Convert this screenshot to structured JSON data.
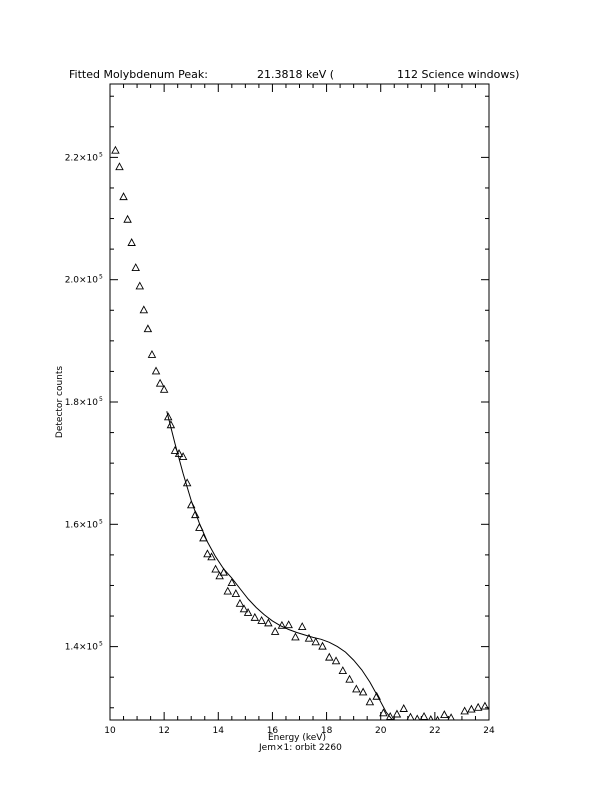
{
  "chart_data": {
    "type": "scatter",
    "title": "Fitted Molybdenum Peak:",
    "title_value": "21.3818 keV (",
    "title_windows": "112 Science windows)",
    "xlabel": "Energy (keV)",
    "ylabel": "Detector counts",
    "caption": "Jem×1: orbit 2260",
    "xlim": [
      10,
      24
    ],
    "ylim": [
      128000,
      232000
    ],
    "x_ticks": [
      10,
      12,
      14,
      16,
      18,
      20,
      22,
      24
    ],
    "x_tick_labels": [
      "10",
      "12",
      "14",
      "16",
      "18",
      "20",
      "22",
      "24"
    ],
    "y_ticks": [
      140000,
      160000,
      180000,
      200000,
      220000
    ],
    "y_tick_labels": [
      {
        "mantissa": "1.4×10",
        "exp": "5"
      },
      {
        "mantissa": "1.6×10",
        "exp": "5"
      },
      {
        "mantissa": "1.8×10",
        "exp": "5"
      },
      {
        "mantissa": "2.0×10",
        "exp": "5"
      },
      {
        "mantissa": "2.2×10",
        "exp": "5"
      }
    ],
    "grid": false,
    "series": [
      {
        "marker": "triangle-open",
        "x": [
          10.2,
          10.35,
          10.5,
          10.65,
          10.8,
          10.95,
          11.1,
          11.25,
          11.4,
          11.55,
          11.7,
          11.85,
          12.0,
          12.15,
          12.25,
          12.4,
          12.55,
          12.7,
          12.85,
          13.0,
          13.15,
          13.3,
          13.45,
          13.6,
          13.75,
          13.9,
          14.05,
          14.2,
          14.35,
          14.5,
          14.65,
          14.8,
          14.95,
          15.1,
          15.35,
          15.6,
          15.85,
          16.1,
          16.35,
          16.6,
          16.85,
          17.1,
          17.35,
          17.6,
          17.85,
          18.1,
          18.35,
          18.6,
          18.85,
          19.1,
          19.35,
          19.6,
          19.85,
          20.1,
          20.35,
          20.6,
          20.85,
          21.1,
          21.35,
          21.6,
          21.85,
          22.1,
          22.35,
          22.6,
          22.85,
          23.1,
          23.35,
          23.6,
          23.85
        ],
        "y": [
          221100,
          218400,
          213500,
          209800,
          206000,
          201900,
          198900,
          195000,
          191900,
          187700,
          185000,
          183000,
          182000,
          177500,
          176200,
          172000,
          171500,
          171000,
          166700,
          163100,
          161500,
          159400,
          157700,
          155100,
          154600,
          152600,
          151500,
          152100,
          149000,
          150400,
          148600,
          147000,
          146100,
          145500,
          144700,
          144200,
          143800,
          142400,
          143400,
          143500,
          141500,
          143200,
          141300,
          140700,
          140000,
          138200,
          137600,
          136000,
          134600,
          133000,
          132500,
          130900,
          131800,
          129100,
          128500,
          128900,
          129800,
          128400,
          128100,
          128500,
          128000,
          127900,
          128800,
          128300,
          127300,
          129400,
          129700,
          130000,
          130200
        ]
      },
      {
        "name": "fit",
        "style": "line",
        "x": [
          12.1,
          12.4,
          12.7,
          13.0,
          13.3,
          13.6,
          13.9,
          14.2,
          14.5,
          14.8,
          15.1,
          15.4,
          15.7,
          16.0,
          16.3,
          16.6,
          16.9,
          17.2,
          17.5,
          17.8,
          18.1,
          18.4,
          18.7,
          19.0,
          19.3,
          19.6,
          19.9,
          20.2,
          20.45
        ],
        "y": [
          178500,
          173200,
          168300,
          163900,
          160200,
          157100,
          154700,
          152700,
          151200,
          149500,
          147800,
          146400,
          145200,
          144200,
          143400,
          142800,
          142300,
          141900,
          141500,
          141200,
          140700,
          140000,
          139100,
          137800,
          136200,
          134200,
          131800,
          129300,
          127900
        ]
      }
    ]
  }
}
